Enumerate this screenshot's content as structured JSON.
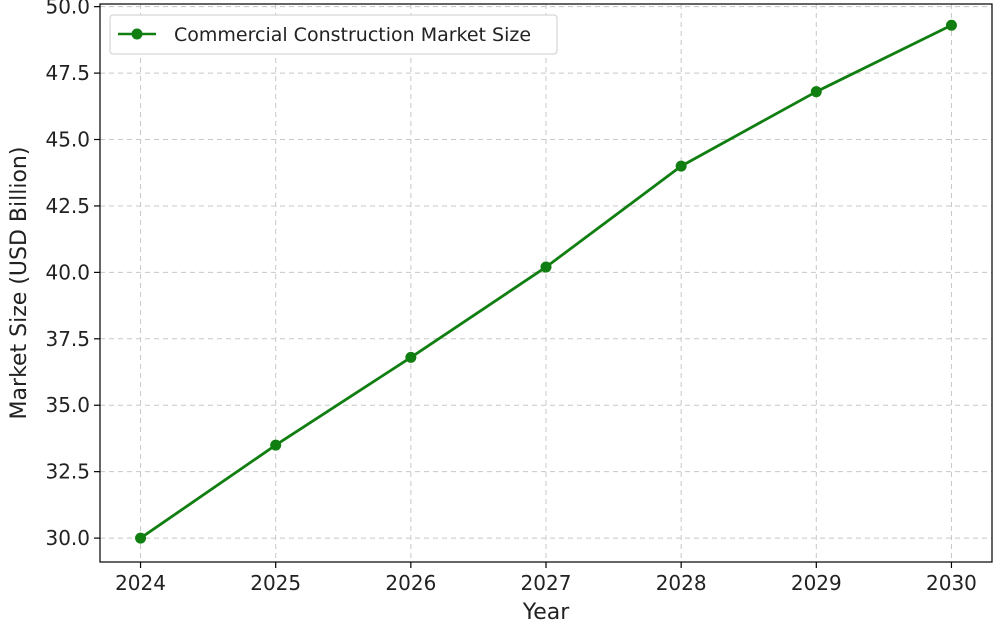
{
  "chart_data": {
    "type": "line",
    "title": "",
    "xlabel": "Year",
    "ylabel": "Market Size (USD Billion)",
    "x": [
      2024,
      2025,
      2026,
      2027,
      2028,
      2029,
      2030
    ],
    "x_tick_labels": [
      "2024",
      "2025",
      "2026",
      "2027",
      "2028",
      "2029",
      "2030"
    ],
    "y_ticks": [
      30.0,
      32.5,
      35.0,
      37.5,
      40.0,
      42.5,
      45.0,
      47.5,
      50.0
    ],
    "y_tick_labels": [
      "30.0",
      "32.5",
      "35.0",
      "37.5",
      "40.0",
      "42.5",
      "45.0",
      "47.5",
      "50.0"
    ],
    "xlim": [
      2023.7,
      2030.3
    ],
    "ylim": [
      29.1,
      50.1
    ],
    "grid": true,
    "legend_position": "top-left",
    "series": [
      {
        "name": "Commercial Construction Market Size",
        "values": [
          30.0,
          33.5,
          36.8,
          40.2,
          44.0,
          46.8,
          49.3
        ],
        "color": "#107e10",
        "marker": "circle"
      }
    ]
  }
}
